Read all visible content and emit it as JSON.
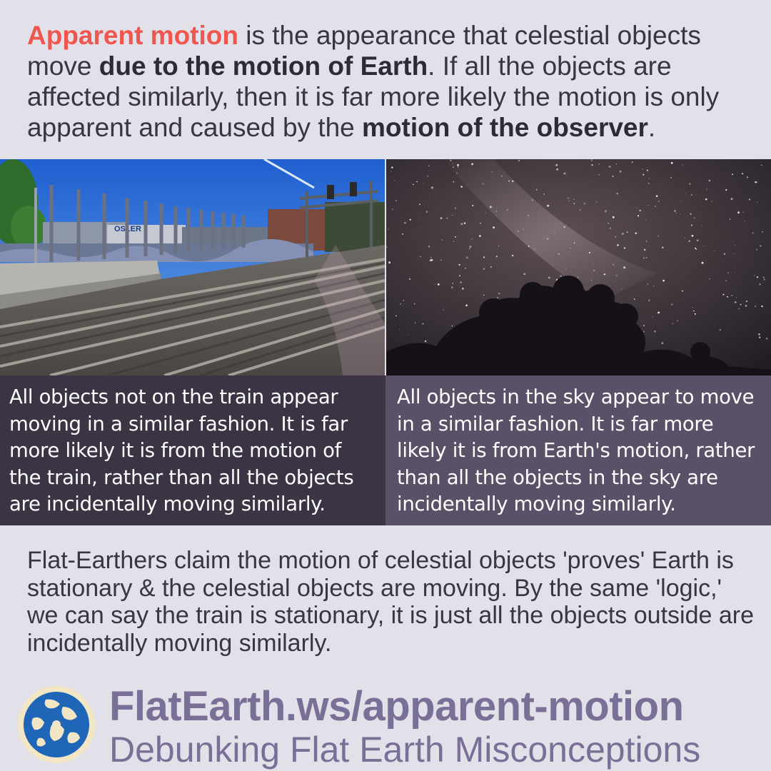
{
  "intro": {
    "highlight": "Apparent motion",
    "t1": " is the appearance that celestial objects move ",
    "b1": "due to the motion of Earth",
    "t2": ". If all the objects are affected similarly, then it is far more likely the motion is only apparent and caused by the ",
    "b2": "motion of the observer",
    "t3": "."
  },
  "colors": {
    "highlight": "#f0554e",
    "text": "#3a3444",
    "caption_left_bg": "#3b3444",
    "caption_right_bg": "#5a5068",
    "brand": "#7a6f96",
    "page_bg": "#e2e0e8"
  },
  "photos": {
    "train_sign": "OSLER"
  },
  "captions": {
    "left": "All objects not on the train appear moving in a similar fashion. It is far more likely it is from the motion of the train, rather than all the objects are incidentally moving similarly.",
    "right": "All objects in the sky appear to move in a similar fashion. It is far more likely it is from Earth's motion, rather than all the objects in the sky are incidentally moving similarly."
  },
  "claim": "Flat-Earthers claim the motion of celestial objects 'proves' Earth is stationary & the celestial objects are moving. By the same 'logic,' we can say the train is stationary, it is just all the objects outside are incidentally moving similarly.",
  "footer": {
    "logo_icon": "globe-logo-icon",
    "url": "FlatEarth.ws/apparent-motion",
    "tagline": "Debunking Flat Earth Misconceptions"
  }
}
